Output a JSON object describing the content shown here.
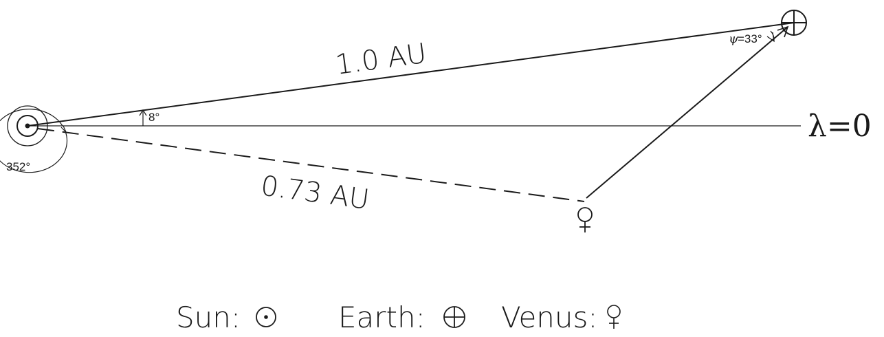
{
  "labels": {
    "earth_distance": "1.0 AU",
    "venus_distance": "0.73 AU",
    "angle_earth": "8°",
    "angle_venus": "352°",
    "psi_symbol": "ψ",
    "psi_value": "=33°",
    "reference_direction": "λ=0"
  },
  "legend": {
    "sun_label": "Sun:",
    "earth_label": "Earth:",
    "venus_label": "Venus:"
  },
  "symbols": {
    "sun": "sun-symbol",
    "earth": "earth-symbol",
    "venus": "venus-symbol"
  },
  "colors": {
    "ink": "#1a1a1a",
    "background": "#ffffff"
  }
}
